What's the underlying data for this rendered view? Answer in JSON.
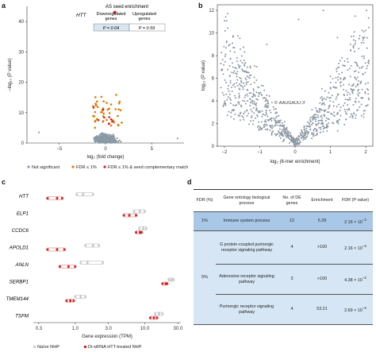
{
  "panels": {
    "a": {
      "letter": "a",
      "chart_data": {
        "type": "scatter",
        "xlabel": "log₂ (fold change)",
        "ylabel": "–log₁₀ (P value)",
        "xlim": [
          -8.5,
          8.5
        ],
        "ylim": [
          0,
          45
        ],
        "xticks": [
          "−5",
          "0",
          "5"
        ],
        "yticks": [
          "0",
          "10",
          "20",
          "30",
          "40"
        ],
        "annotation": "HTT",
        "highlight_point": {
          "x": 1.0,
          "y": 43
        },
        "legend": [
          {
            "label": "Not significant",
            "color": "#8a9aa6"
          },
          {
            "label": "FDR ≤ 1%",
            "color": "#e07b00"
          },
          {
            "label": "FDR ≤ 1% & seed complementary match",
            "color": "#d62020"
          }
        ],
        "inset": {
          "title": "AS seed enrichment",
          "col1": "Downregulated genes",
          "col2": "Upregulated genes",
          "val1": "P = 0.04",
          "val2": "P = 0.59"
        }
      }
    },
    "b": {
      "letter": "b",
      "chart_data": {
        "type": "scatter",
        "xlabel": "log₂ (6-mer enrichment)",
        "ylabel": "log₁₀ (P value)",
        "xlim": [
          -2.2,
          2.2
        ],
        "ylim": [
          0,
          12.5
        ],
        "xticks": [
          "−2",
          "−1",
          "0",
          "1",
          "2"
        ],
        "yticks": [
          "0",
          "2",
          "4",
          "6",
          "8",
          "10",
          "12"
        ],
        "annotation": "5′-AAUGAUU-3′"
      }
    },
    "c": {
      "letter": "c",
      "chart_data": {
        "type": "scatter",
        "xlabel": "Gene expression (TPM)",
        "x_scale": "log",
        "xticks": [
          "0.3",
          "1.0",
          "3.0",
          "10.0",
          "30.0"
        ],
        "xlim": [
          0.25,
          33
        ],
        "categories": [
          "HTT",
          "ELP1",
          "CCDC6",
          "APOLD1",
          "ANLN",
          "SERBP1",
          "TMEM144",
          "TSFM"
        ],
        "series": [
          {
            "name": "Naïve NHP",
            "color": "#c8cdd3",
            "values": [
              [
                1.05,
                1.3,
                1.8
              ],
              [
                7.0,
                8.5,
                10.0
              ],
              [
                8.3,
                9.5,
                10.5
              ],
              [
                1.4,
                1.8,
                2.2
              ],
              [
                1.2,
                1.5,
                2.5
              ],
              [
                22.0,
                24.0,
                26.0
              ],
              [
                1.0,
                1.2,
                1.4
              ],
              [
                14.0,
                16.0,
                18.0
              ]
            ]
          },
          {
            "name": "Di-siRNA HTT-treated NHP",
            "color": "#d62020",
            "values": [
              [
                0.4,
                0.55,
                0.65
              ],
              [
                5.0,
                6.0,
                7.5
              ],
              [
                7.5,
                8.5,
                9.0
              ],
              [
                0.4,
                0.55,
                0.7
              ],
              [
                0.6,
                0.8,
                1.0
              ],
              [
                18.0,
                20.0,
                21.0
              ],
              [
                0.75,
                0.85,
                0.95
              ],
              [
                12.0,
                13.5,
                15.0
              ]
            ]
          }
        ]
      }
    },
    "d": {
      "letter": "d",
      "headers": [
        "FDR (%)",
        "Gene ontology biological process",
        "No. of DE genes",
        "Enrichment",
        "FDR (P value)"
      ],
      "rows": [
        {
          "fdr": "1%",
          "process": "Immune system process",
          "genes": "12",
          "enrichment": "5.29",
          "pval_base": "2.16 × 10",
          "pval_exp": "−2"
        },
        {
          "fdr": "5%",
          "process": "G protein-coupled purinergic receptor signaling pathway",
          "genes": "4",
          "enrichment": ">100",
          "pval_base": "2.16 × 10",
          "pval_exp": "−2"
        },
        {
          "fdr": "",
          "process": "Adenosine receptor signaling pathway",
          "genes": "3",
          "enrichment": ">100",
          "pval_base": "4.38 × 10",
          "pval_exp": "−2"
        },
        {
          "fdr": "",
          "process": "Purinergic receptor signaling pathway",
          "genes": "4",
          "enrichment": "53.21",
          "pval_base": "2.69 × 10",
          "pval_exp": "−2"
        }
      ]
    }
  }
}
